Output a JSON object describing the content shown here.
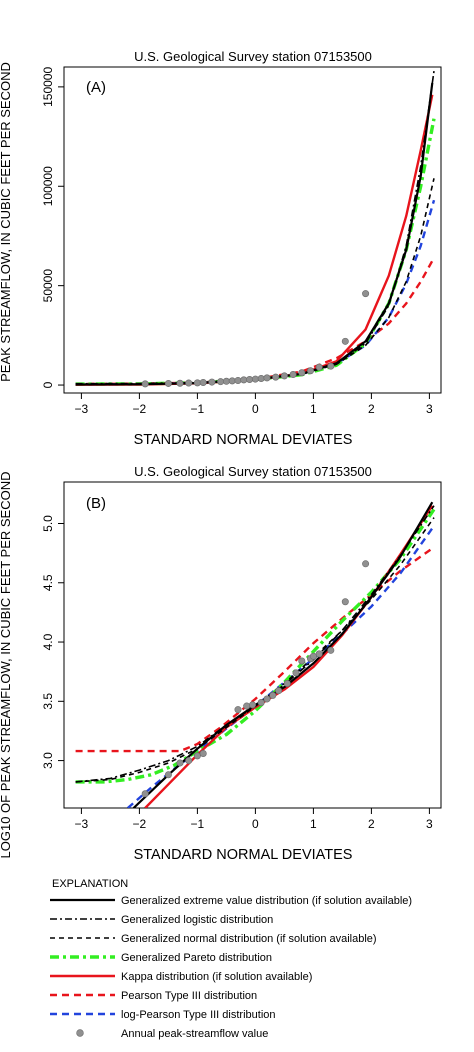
{
  "colors": {
    "gev": "#000000",
    "glo": "#000000",
    "gno": "#000000",
    "gpa": "#33ee22",
    "kap": "#e8141c",
    "pe3": "#e8141c",
    "lp3": "#2244dd",
    "obs": "#909090"
  },
  "legend": {
    "title": "EXPLANATION",
    "items": [
      {
        "key": "gev",
        "label": "Generalized extreme value distribution (if solution available)",
        "style": "solid"
      },
      {
        "key": "glo",
        "label": "Generalized logistic distribution",
        "style": "dashdot"
      },
      {
        "key": "gno",
        "label": "Generalized normal distribution (if solution available)",
        "style": "dashed"
      },
      {
        "key": "gpa",
        "label": "Generalized Pareto distribution",
        "style": "dashdot-thick"
      },
      {
        "key": "kap",
        "label": "Kappa distribution (if solution available)",
        "style": "solid-thick"
      },
      {
        "key": "pe3",
        "label": "Pearson Type III distribution",
        "style": "dashed-thick"
      },
      {
        "key": "lp3",
        "label": "log-Pearson Type III distribution",
        "style": "dashed-thick"
      },
      {
        "key": "obs",
        "label": "Annual peak-streamflow value",
        "style": "point"
      }
    ]
  },
  "chart_data": [
    {
      "type": "line",
      "panel_label": "(A)",
      "title": "U.S. Geological Survey station 07153500",
      "xlabel": "STANDARD NORMAL DEVIATES",
      "ylabel": "PEAK STREAMFLOW, IN CUBIC FEET PER SECOND",
      "xlim": [
        -3.3,
        3.2
      ],
      "ylim": [
        -4000,
        160000
      ],
      "xticks": [
        -3,
        -2,
        -1,
        0,
        1,
        2,
        3
      ],
      "xtick_labels": [
        "−3",
        "−2",
        "−1",
        "0",
        "1",
        "2",
        "3"
      ],
      "yticks": [
        0,
        50000,
        100000,
        150000
      ],
      "ytick_labels": [
        "0",
        "50000",
        "100000",
        "150000"
      ],
      "series": [
        {
          "key": "gev",
          "x": [
            -3.1,
            -2,
            -1,
            0,
            0.8,
            1.4,
            1.9,
            2.3,
            2.6,
            2.85,
            3.05
          ],
          "y": [
            300,
            400,
            1000,
            2800,
            5600,
            11000,
            22000,
            41000,
            68000,
            105000,
            152000
          ]
        },
        {
          "key": "glo",
          "x": [
            -3.1,
            -2,
            -1,
            0,
            0.8,
            1.4,
            1.9,
            2.3,
            2.6,
            2.85,
            3.08
          ],
          "y": [
            700,
            800,
            1300,
            2900,
            5400,
            10500,
            21000,
            40000,
            70000,
            110000,
            158000
          ]
        },
        {
          "key": "gno",
          "x": [
            -3.1,
            -2,
            -1,
            0,
            0.8,
            1.4,
            1.9,
            2.3,
            2.6,
            2.85,
            3.08
          ],
          "y": [
            400,
            500,
            1100,
            2800,
            5500,
            10500,
            20000,
            34000,
            52000,
            75000,
            104000
          ]
        },
        {
          "key": "gpa",
          "x": [
            -3.1,
            -2,
            -1,
            0,
            0.8,
            1.4,
            1.9,
            2.3,
            2.6,
            2.85,
            3.08
          ],
          "y": [
            500,
            600,
            1200,
            2800,
            5200,
            10000,
            21000,
            41000,
            68000,
            100000,
            134000
          ]
        },
        {
          "key": "kap",
          "x": [
            -3.1,
            -2,
            -1,
            0,
            0.8,
            1.4,
            1.9,
            2.3,
            2.6,
            2.85,
            3.05
          ],
          "y": [
            200,
            300,
            900,
            2700,
            5700,
            12000,
            28000,
            55000,
            85000,
            118000,
            146000
          ]
        },
        {
          "key": "pe3",
          "x": [
            -3.1,
            -2,
            -1,
            0,
            0.8,
            1.4,
            1.9,
            2.3,
            2.6,
            2.85,
            3.08
          ],
          "y": [
            600,
            700,
            1300,
            3000,
            6800,
            13500,
            22000,
            31000,
            41000,
            52000,
            64000
          ]
        },
        {
          "key": "lp3",
          "x": [
            -3.1,
            -2,
            -1,
            0,
            0.8,
            1.4,
            1.9,
            2.3,
            2.6,
            2.85,
            3.08
          ],
          "y": [
            300,
            400,
            1000,
            2800,
            5600,
            10800,
            20000,
            34000,
            51000,
            70000,
            93000
          ]
        }
      ],
      "points": {
        "key": "obs",
        "x": [
          -1.9,
          -1.5,
          -1.3,
          -1.15,
          -1.0,
          -0.9,
          -0.75,
          -0.6,
          -0.5,
          -0.4,
          -0.3,
          -0.2,
          -0.1,
          0.0,
          0.1,
          0.2,
          0.35,
          0.5,
          0.65,
          0.8,
          0.95,
          1.1,
          1.3,
          1.55,
          1.9
        ],
        "y": [
          600,
          800,
          900,
          1000,
          1100,
          1300,
          1500,
          1700,
          1900,
          2100,
          2300,
          2600,
          2800,
          3000,
          3300,
          3600,
          4000,
          4600,
          5300,
          6200,
          7200,
          9000,
          9500,
          22000,
          46000
        ]
      }
    },
    {
      "type": "line",
      "panel_label": "(B)",
      "title": "U.S. Geological Survey station 07153500",
      "xlabel": "STANDARD NORMAL DEVIATES",
      "ylabel": "LOG10 OF PEAK STREAMFLOW, IN CUBIC FEET PER SECOND",
      "xlim": [
        -3.3,
        3.2
      ],
      "ylim": [
        2.6,
        5.35
      ],
      "xticks": [
        -3,
        -2,
        -1,
        0,
        1,
        2,
        3
      ],
      "xtick_labels": [
        "−3",
        "−2",
        "−1",
        "0",
        "1",
        "2",
        "3"
      ],
      "yticks": [
        3.0,
        3.5,
        4.0,
        4.5,
        5.0
      ],
      "ytick_labels": [
        "3.0",
        "3.5",
        "4.0",
        "4.5",
        "5.0"
      ],
      "series": [
        {
          "key": "gev",
          "x": [
            -2.1,
            -1.5,
            -1.0,
            -0.5,
            0.0,
            0.5,
            1.0,
            1.5,
            2.0,
            2.5,
            3.05
          ],
          "y": [
            2.6,
            2.88,
            3.1,
            3.3,
            3.47,
            3.62,
            3.82,
            4.07,
            4.38,
            4.72,
            5.18
          ]
        },
        {
          "key": "glo",
          "x": [
            -3.1,
            -2.5,
            -2.0,
            -1.5,
            -1.0,
            -0.5,
            0.0,
            0.5,
            1.0,
            1.5,
            2.0,
            2.5,
            3.08
          ],
          "y": [
            2.82,
            2.85,
            2.92,
            3.0,
            3.12,
            3.3,
            3.46,
            3.64,
            3.85,
            4.1,
            4.4,
            4.73,
            5.15
          ]
        },
        {
          "key": "gno",
          "x": [
            -3.1,
            -2.5,
            -2.0,
            -1.5,
            -1.0,
            -0.5,
            0.0,
            0.5,
            1.0,
            1.5,
            2.0,
            2.5,
            3.08
          ],
          "y": [
            2.82,
            2.84,
            2.9,
            2.98,
            3.1,
            3.28,
            3.46,
            3.65,
            3.87,
            4.1,
            4.36,
            4.65,
            5.05
          ]
        },
        {
          "key": "gpa",
          "x": [
            -3.1,
            -2.6,
            -2.2,
            -1.8,
            -1.4,
            -1.0,
            -0.5,
            0.0,
            0.5,
            1.0,
            1.5,
            2.0,
            2.5,
            3.08
          ],
          "y": [
            2.82,
            2.82,
            2.84,
            2.88,
            2.96,
            3.08,
            3.22,
            3.42,
            3.66,
            3.92,
            4.18,
            4.42,
            4.7,
            5.12
          ]
        },
        {
          "key": "kap",
          "x": [
            -1.9,
            -1.5,
            -1.0,
            -0.5,
            0.0,
            0.5,
            1.0,
            1.5,
            2.0,
            2.5,
            3.05
          ],
          "y": [
            2.6,
            2.8,
            3.05,
            3.28,
            3.45,
            3.6,
            3.79,
            4.06,
            4.38,
            4.74,
            5.15
          ]
        },
        {
          "key": "pe3",
          "x": [
            -3.1,
            -1.3,
            -1.0,
            -0.6,
            0.0,
            0.5,
            1.0,
            1.5,
            2.0,
            2.5,
            3.08
          ],
          "y": [
            3.08,
            3.08,
            3.14,
            3.28,
            3.52,
            3.75,
            3.99,
            4.2,
            4.4,
            4.6,
            4.8
          ]
        },
        {
          "key": "lp3",
          "x": [
            -2.2,
            -1.8,
            -1.4,
            -1.0,
            -0.5,
            0.0,
            0.5,
            1.0,
            1.5,
            2.0,
            2.5,
            3.08
          ],
          "y": [
            2.6,
            2.77,
            2.93,
            3.08,
            3.27,
            3.46,
            3.66,
            3.86,
            4.07,
            4.3,
            4.58,
            4.98
          ]
        }
      ],
      "points": {
        "key": "obs",
        "x": [
          -1.9,
          -1.5,
          -1.3,
          -1.15,
          -1.0,
          -0.9,
          -0.3,
          -0.15,
          -0.05,
          0.1,
          0.2,
          0.3,
          0.4,
          0.55,
          0.7,
          0.8,
          0.95,
          1.0,
          1.1,
          1.3,
          1.55,
          1.9
        ],
        "y": [
          2.72,
          2.88,
          2.98,
          3.0,
          3.04,
          3.06,
          3.43,
          3.46,
          3.47,
          3.49,
          3.52,
          3.55,
          3.59,
          3.65,
          3.74,
          3.84,
          3.86,
          3.88,
          3.9,
          3.93,
          4.34,
          4.66
        ]
      }
    }
  ]
}
